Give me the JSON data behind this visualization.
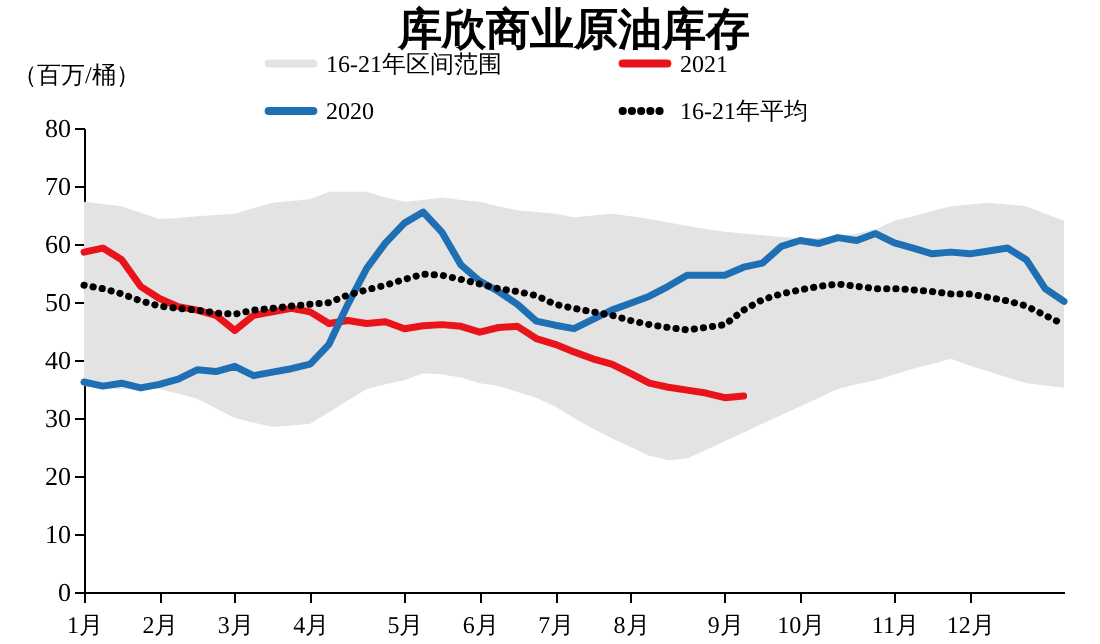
{
  "chart_data": {
    "type": "line",
    "title": "库欣商业原油库存",
    "ylabel": "（百万/桶）",
    "categories": [
      "1月",
      null,
      null,
      null,
      "2月",
      null,
      null,
      null,
      "3月",
      null,
      null,
      null,
      "4月",
      null,
      null,
      null,
      null,
      "5月",
      null,
      null,
      null,
      "6月",
      null,
      null,
      null,
      "7月",
      null,
      null,
      null,
      "8月",
      null,
      null,
      null,
      null,
      "9月",
      null,
      null,
      null,
      "10月",
      null,
      null,
      null,
      null,
      "11月",
      null,
      null,
      null,
      "12月",
      null,
      null,
      null,
      null,
      null
    ],
    "ylim": [
      0,
      80
    ],
    "yticks": [
      0,
      10,
      20,
      30,
      40,
      50,
      60,
      70,
      80
    ],
    "legend": "top",
    "series": [
      {
        "name": "16-21年区间范围",
        "type": "area",
        "color": "#e3e3e3",
        "values": [
          null,
          null,
          null,
          null,
          null,
          null,
          null,
          null,
          null,
          null,
          null,
          null,
          null,
          null,
          null,
          null,
          null,
          null,
          null,
          null,
          null,
          null,
          null,
          null,
          null,
          null,
          null,
          null,
          null,
          null,
          null,
          null,
          null,
          null,
          null,
          null,
          null,
          null,
          null,
          null,
          null,
          null,
          null,
          null,
          null,
          null,
          null,
          null,
          null,
          null,
          null,
          null,
          null
        ],
        "upper": [
          67.3,
          66.9,
          66.5,
          65.4,
          64.3,
          64.5,
          64.8,
          65,
          65.2,
          66.2,
          67.1,
          67.4,
          67.7,
          69,
          69,
          69,
          68,
          67.3,
          67.6,
          68,
          67.6,
          67.3,
          66.5,
          65.8,
          65.5,
          65.2,
          64.6,
          64.9,
          65.2,
          64.8,
          64.3,
          63.7,
          63.1,
          62.6,
          62.1,
          61.8,
          61.5,
          61.2,
          61,
          61.1,
          61.2,
          61.8,
          62.5,
          64,
          64.8,
          65.7,
          66.5,
          66.8,
          67.1,
          66.8,
          66.5,
          65.2,
          64
        ],
        "lower": [
          35.5,
          35.2,
          35,
          35,
          35,
          34.2,
          33.3,
          31.7,
          30,
          29.2,
          28.5,
          28.7,
          29,
          31,
          33,
          35,
          35.8,
          36.5,
          37.7,
          37.5,
          37,
          36,
          35.5,
          34.5,
          33.5,
          32,
          30,
          28.2,
          26.5,
          25,
          23.5,
          22.7,
          23,
          24.5,
          26,
          27.5,
          29,
          30.5,
          32,
          33.5,
          35,
          35.8,
          36.5,
          37.5,
          38.5,
          39.3,
          40.2,
          39,
          38,
          37,
          36,
          35.6,
          35.2
        ]
      },
      {
        "name": "2021",
        "color": "#e8141a",
        "values": [
          58.6,
          59.3,
          57.3,
          52.7,
          50.6,
          49.2,
          48.6,
          47.7,
          45.1,
          47.7,
          48.3,
          48.9,
          48.3,
          46.3,
          46.8,
          46.3,
          46.6,
          45.4,
          45.9,
          46.1,
          45.8,
          44.8,
          45.6,
          45.8,
          43.7,
          42.7,
          41.4,
          40.2,
          39.3,
          37.7,
          36,
          35.3,
          34.8,
          34.3,
          33.5,
          33.8,
          null,
          null,
          null,
          null,
          null,
          null,
          null,
          null,
          null,
          null,
          null,
          null,
          null,
          null,
          null,
          null,
          null
        ]
      },
      {
        "name": "2020",
        "color": "#1f6fb4",
        "values": [
          36.2,
          35.5,
          36,
          35.2,
          35.8,
          36.7,
          38.3,
          38,
          38.9,
          37.3,
          37.9,
          38.5,
          39.3,
          42.7,
          49.6,
          55.8,
          60.2,
          63.6,
          65.5,
          62,
          56.4,
          53.6,
          51.8,
          49.6,
          46.7,
          46,
          45.4,
          47,
          48.6,
          49.8,
          51,
          52.7,
          54.6,
          54.6,
          54.6,
          56,
          56.7,
          59.6,
          60.6,
          60.1,
          61.1,
          60.6,
          61.8,
          60.2,
          59.3,
          58.3,
          58.6,
          58.3,
          58.8,
          59.3,
          57.3,
          52.3,
          50.1
        ]
      },
      {
        "name": "16-21年平均",
        "color": "#000000",
        "line_style": "dotted",
        "values": [
          52.9,
          52.3,
          51.4,
          50.2,
          49.3,
          48.9,
          48.6,
          48.1,
          47.9,
          48.6,
          48.9,
          49.3,
          49.6,
          49.9,
          51.2,
          52.1,
          52.9,
          53.9,
          54.8,
          54.6,
          53.9,
          53.1,
          52.3,
          51.8,
          51.1,
          49.6,
          48.9,
          48.3,
          47.7,
          46.8,
          46.1,
          45.6,
          45.2,
          45.6,
          46.1,
          48.6,
          50.4,
          51.4,
          52.1,
          52.7,
          53.1,
          52.7,
          52.3,
          52.3,
          52.1,
          51.8,
          51.4,
          51.4,
          50.8,
          50.2,
          49.3,
          47.7,
          46.1
        ]
      }
    ]
  }
}
